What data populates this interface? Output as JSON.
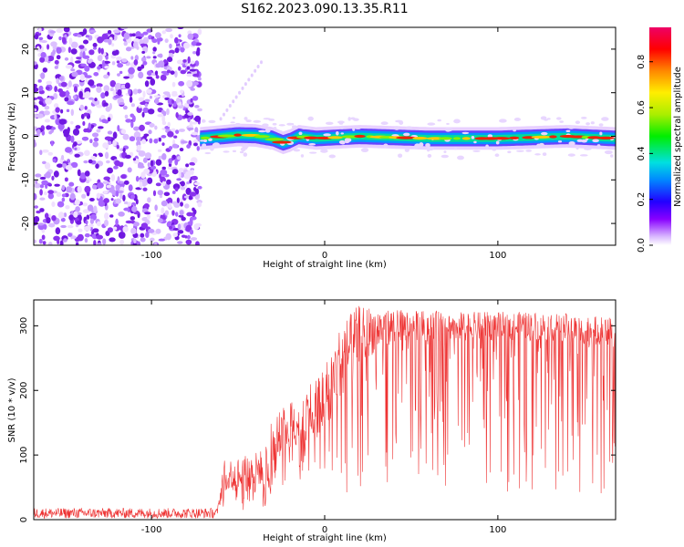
{
  "title": "S162.2023.090.13.35.R11",
  "chart_data": [
    {
      "type": "heatmap",
      "xlabel": "Height of straight line (km)",
      "ylabel": "Frequency (Hz)",
      "xlim": [
        -168,
        168
      ],
      "ylim": [
        -25,
        25
      ],
      "xticks": [
        -100,
        0,
        100
      ],
      "yticks": [
        -20,
        -10,
        0,
        10,
        20
      ],
      "noise_region_x": [
        -168,
        -72
      ],
      "signal_start_km": -72,
      "ridge_profile": [
        {
          "x": -72,
          "y": -0.5
        },
        {
          "x": -50,
          "y": 0.3
        },
        {
          "x": -40,
          "y": 0.2
        },
        {
          "x": -30,
          "y": -0.5
        },
        {
          "x": -24,
          "y": -1.5
        },
        {
          "x": -20,
          "y": -1.0
        },
        {
          "x": -15,
          "y": 0.0
        },
        {
          "x": -5,
          "y": -0.5
        },
        {
          "x": 20,
          "y": 0.0
        },
        {
          "x": 60,
          "y": -0.5
        },
        {
          "x": 100,
          "y": -0.5
        },
        {
          "x": 140,
          "y": 0.0
        },
        {
          "x": 168,
          "y": -0.5
        }
      ],
      "colorbar": {
        "label": "Normalized spectral amplitude",
        "range": [
          0,
          0.95
        ],
        "ticks": [
          0.0,
          0.2,
          0.4,
          0.6,
          0.8
        ]
      }
    },
    {
      "type": "line",
      "xlabel": "Height of straight line (km)",
      "ylabel": "SNR (10 * v/v)",
      "xlim": [
        -168,
        168
      ],
      "ylim": [
        0,
        340
      ],
      "xticks": [
        -100,
        0,
        100
      ],
      "yticks": [
        0,
        100,
        200,
        300
      ],
      "color": "#ee3333",
      "envelope": [
        {
          "x": -168,
          "base": 10,
          "spread": 8
        },
        {
          "x": -62,
          "base": 10,
          "spread": 8
        },
        {
          "x": -58,
          "base": 60,
          "spread": 45
        },
        {
          "x": -35,
          "base": 70,
          "spread": 55
        },
        {
          "x": -30,
          "base": 110,
          "spread": 70
        },
        {
          "x": -15,
          "base": 140,
          "spread": 80
        },
        {
          "x": 0,
          "base": 170,
          "spread": 100
        },
        {
          "x": 10,
          "base": 230,
          "spread": 110
        },
        {
          "x": 20,
          "base": 270,
          "spread": 90
        },
        {
          "x": 40,
          "base": 290,
          "spread": 50
        },
        {
          "x": 80,
          "base": 290,
          "spread": 45
        },
        {
          "x": 130,
          "base": 290,
          "spread": 45
        },
        {
          "x": 168,
          "base": 280,
          "spread": 45
        }
      ],
      "dropouts_to_min": 40
    }
  ]
}
